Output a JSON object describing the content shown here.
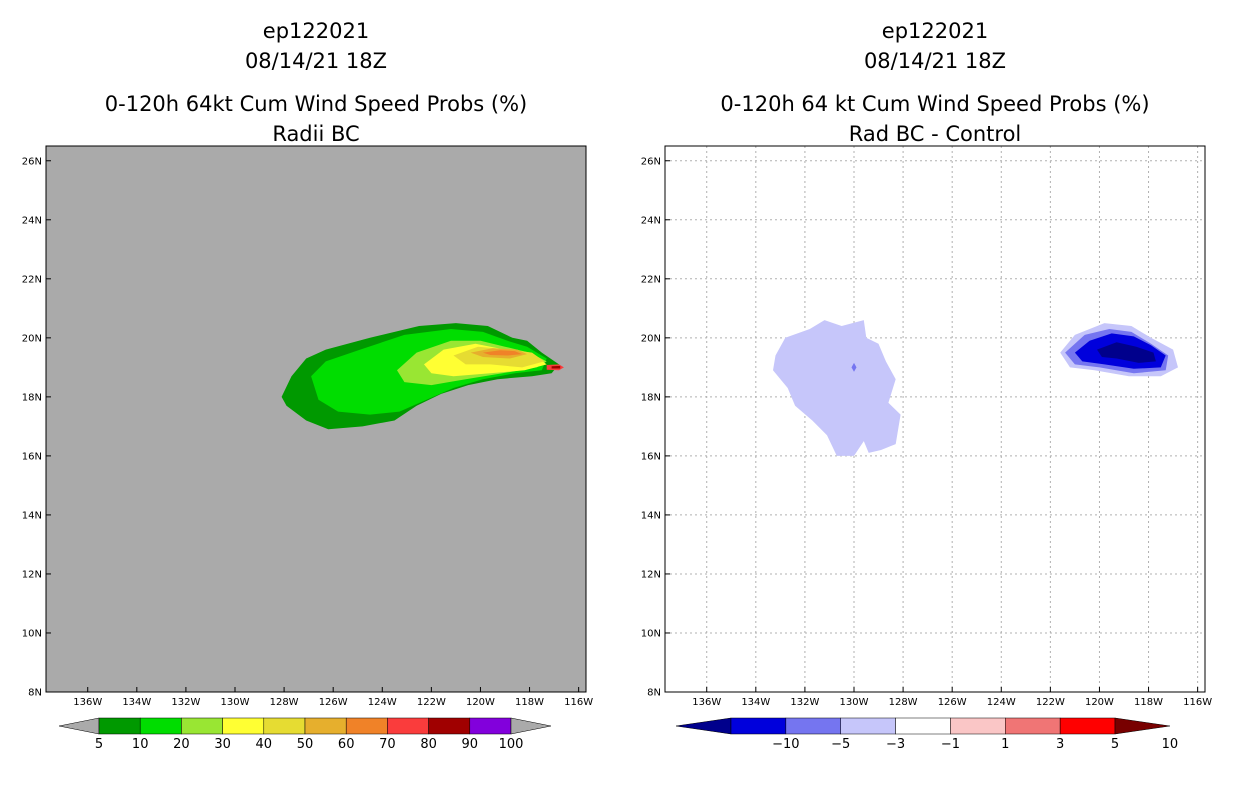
{
  "chart_data": [
    {
      "type": "heatmap",
      "title_lines": [
        "ep122021",
        "08/14/21 18Z",
        "0-120h 64kt Cum Wind Speed Probs (%)",
        "Radii BC"
      ],
      "x_ticks": [
        "136W",
        "134W",
        "132W",
        "130W",
        "128W",
        "126W",
        "124W",
        "122W",
        "120W",
        "118W",
        "116W"
      ],
      "y_ticks": [
        "8N",
        "10N",
        "12N",
        "14N",
        "16N",
        "18N",
        "20N",
        "22N",
        "24N",
        "26N"
      ],
      "x_range": [
        -137.7,
        -115.7
      ],
      "y_range": [
        8,
        26.5
      ],
      "grid": false,
      "background": "#aaaaaa",
      "colorbar": {
        "labels": [
          "5",
          "10",
          "20",
          "30",
          "40",
          "50",
          "60",
          "70",
          "80",
          "90",
          "100"
        ],
        "colors": [
          "#009900",
          "#00dd00",
          "#99e633",
          "#ffff33",
          "#e6dc32",
          "#e6af2d",
          "#f08228",
          "#fa3c3c",
          "#a00000",
          "#8200dc"
        ],
        "under_color": "#aaaaaa",
        "over_color": "#aaaaaa"
      },
      "contours": [
        {
          "level": "5-10",
          "color": "#009900",
          "points": [
            [
              -128.1,
              18.0
            ],
            [
              -127.7,
              18.7
            ],
            [
              -127.1,
              19.3
            ],
            [
              -126.3,
              19.6
            ],
            [
              -124.5,
              20.0
            ],
            [
              -122.5,
              20.4
            ],
            [
              -121.0,
              20.5
            ],
            [
              -119.7,
              20.4
            ],
            [
              -118.7,
              20.0
            ],
            [
              -118.1,
              19.9
            ],
            [
              -117.5,
              19.5
            ],
            [
              -116.8,
              19.1
            ],
            [
              -117.1,
              18.8
            ],
            [
              -117.9,
              18.7
            ],
            [
              -119.3,
              18.6
            ],
            [
              -120.5,
              18.4
            ],
            [
              -121.6,
              18.1
            ],
            [
              -122.6,
              17.7
            ],
            [
              -123.5,
              17.2
            ],
            [
              -124.8,
              17.0
            ],
            [
              -126.2,
              16.9
            ],
            [
              -127.1,
              17.2
            ],
            [
              -127.9,
              17.7
            ]
          ]
        },
        {
          "level": "10-20",
          "color": "#00dd00",
          "points": [
            [
              -126.9,
              18.7
            ],
            [
              -126.3,
              19.2
            ],
            [
              -124.9,
              19.6
            ],
            [
              -123.1,
              20.1
            ],
            [
              -121.2,
              20.3
            ],
            [
              -119.9,
              20.2
            ],
            [
              -118.9,
              19.9
            ],
            [
              -118.1,
              19.7
            ],
            [
              -117.3,
              19.3
            ],
            [
              -117.5,
              18.9
            ],
            [
              -118.6,
              18.8
            ],
            [
              -119.9,
              18.6
            ],
            [
              -121.1,
              18.3
            ],
            [
              -122.2,
              17.9
            ],
            [
              -123.3,
              17.5
            ],
            [
              -124.5,
              17.4
            ],
            [
              -125.8,
              17.5
            ],
            [
              -126.6,
              17.9
            ]
          ]
        },
        {
          "level": "20-30",
          "color": "#99e633",
          "points": [
            [
              -123.4,
              18.9
            ],
            [
              -122.6,
              19.5
            ],
            [
              -121.2,
              19.9
            ],
            [
              -120.0,
              19.9
            ],
            [
              -119.0,
              19.7
            ],
            [
              -118.0,
              19.5
            ],
            [
              -117.3,
              19.2
            ],
            [
              -117.7,
              19.0
            ],
            [
              -119.1,
              18.8
            ],
            [
              -120.6,
              18.6
            ],
            [
              -122.0,
              18.4
            ],
            [
              -123.1,
              18.5
            ]
          ]
        },
        {
          "level": "30-40",
          "color": "#ffff33",
          "points": [
            [
              -122.3,
              19.1
            ],
            [
              -121.5,
              19.6
            ],
            [
              -120.2,
              19.8
            ],
            [
              -119.0,
              19.6
            ],
            [
              -117.8,
              19.4
            ],
            [
              -117.3,
              19.1
            ],
            [
              -118.2,
              18.9
            ],
            [
              -119.6,
              18.8
            ],
            [
              -121.1,
              18.7
            ],
            [
              -122.0,
              18.8
            ]
          ]
        },
        {
          "level": "40-50",
          "color": "#e6dc32",
          "points": [
            [
              -121.1,
              19.4
            ],
            [
              -120.1,
              19.7
            ],
            [
              -118.8,
              19.6
            ],
            [
              -117.9,
              19.5
            ],
            [
              -117.4,
              19.2
            ],
            [
              -118.3,
              19.0
            ],
            [
              -119.6,
              19.1
            ],
            [
              -120.6,
              19.1
            ]
          ]
        },
        {
          "level": "50-60",
          "color": "#e6af2d",
          "points": [
            [
              -120.4,
              19.5
            ],
            [
              -119.5,
              19.65
            ],
            [
              -118.5,
              19.6
            ],
            [
              -118.1,
              19.45
            ],
            [
              -118.8,
              19.3
            ],
            [
              -119.9,
              19.35
            ]
          ]
        },
        {
          "level": "60-70",
          "color": "#f08228",
          "points": [
            [
              -119.9,
              19.5
            ],
            [
              -119.2,
              19.58
            ],
            [
              -118.6,
              19.55
            ],
            [
              -118.3,
              19.45
            ],
            [
              -118.9,
              19.4
            ],
            [
              -119.6,
              19.42
            ]
          ]
        },
        {
          "level": "70-80",
          "color": "#fa3c3c",
          "points": [
            [
              -117.3,
              19.08
            ],
            [
              -116.8,
              19.1
            ],
            [
              -116.6,
              19.0
            ],
            [
              -116.8,
              18.9
            ],
            [
              -117.3,
              18.92
            ]
          ]
        },
        {
          "level": "80-90",
          "color": "#a00000",
          "points": [
            [
              -117.1,
              19.04
            ],
            [
              -116.75,
              19.05
            ],
            [
              -116.75,
              18.96
            ],
            [
              -117.1,
              18.96
            ]
          ]
        }
      ]
    },
    {
      "type": "heatmap",
      "title_lines": [
        "ep122021",
        "08/14/21 18Z",
        "0-120h 64 kt Cum Wind Speed Probs (%)",
        "Rad BC - Control"
      ],
      "x_ticks": [
        "136W",
        "134W",
        "132W",
        "130W",
        "128W",
        "126W",
        "124W",
        "122W",
        "120W",
        "118W",
        "116W"
      ],
      "y_ticks": [
        "8N",
        "10N",
        "12N",
        "14N",
        "16N",
        "18N",
        "20N",
        "22N",
        "24N",
        "26N"
      ],
      "x_range": [
        -137.7,
        -115.7
      ],
      "y_range": [
        8,
        26.5
      ],
      "grid": true,
      "background": "#ffffff",
      "colorbar": {
        "labels": [
          "-10",
          "-5",
          "-3",
          "-1",
          "1",
          "3",
          "5",
          "10"
        ],
        "colors": [
          "#0000dc",
          "#7575f0",
          "#c6c6fa",
          "#ffffff",
          "#fac6c6",
          "#f07575",
          "#ff0000"
        ],
        "under_color": "#00008c",
        "over_color": "#780000"
      },
      "contours": [
        {
          "level": "-3--1",
          "color": "#c6c6fa",
          "points": [
            [
              -133.2,
              19.4
            ],
            [
              -132.8,
              20.0
            ],
            [
              -131.8,
              20.3
            ],
            [
              -131.2,
              20.6
            ],
            [
              -130.5,
              20.4
            ],
            [
              -129.6,
              20.6
            ],
            [
              -129.5,
              20.0
            ],
            [
              -129.0,
              19.8
            ],
            [
              -128.7,
              19.2
            ],
            [
              -128.3,
              18.6
            ],
            [
              -128.6,
              17.8
            ],
            [
              -128.1,
              17.4
            ],
            [
              -128.3,
              16.4
            ],
            [
              -128.9,
              16.2
            ],
            [
              -129.4,
              16.1
            ],
            [
              -129.6,
              16.5
            ],
            [
              -130.0,
              16.0
            ],
            [
              -130.7,
              16.0
            ],
            [
              -131.1,
              16.7
            ],
            [
              -131.7,
              17.2
            ],
            [
              -132.4,
              17.7
            ],
            [
              -132.7,
              18.3
            ],
            [
              -133.3,
              18.9
            ]
          ]
        },
        {
          "level": "-3--1",
          "color": "#c6c6fa",
          "points": [
            [
              -121.6,
              19.5
            ],
            [
              -121.0,
              20.1
            ],
            [
              -119.8,
              20.5
            ],
            [
              -118.7,
              20.4
            ],
            [
              -117.9,
              20.0
            ],
            [
              -117.0,
              19.6
            ],
            [
              -116.8,
              19.0
            ],
            [
              -117.5,
              18.7
            ],
            [
              -118.8,
              18.7
            ],
            [
              -120.2,
              18.9
            ],
            [
              -121.2,
              19.0
            ]
          ]
        },
        {
          "level": "-5--3",
          "color": "#7575f0",
          "points": [
            [
              -121.4,
              19.5
            ],
            [
              -120.6,
              20.1
            ],
            [
              -119.6,
              20.3
            ],
            [
              -118.7,
              20.2
            ],
            [
              -117.9,
              19.8
            ],
            [
              -117.2,
              19.4
            ],
            [
              -117.3,
              18.9
            ],
            [
              -118.6,
              18.8
            ],
            [
              -120.0,
              19.0
            ],
            [
              -121.0,
              19.1
            ]
          ]
        },
        {
          "level": "-10--5",
          "color": "#0000dc",
          "points": [
            [
              -121.0,
              19.5
            ],
            [
              -120.4,
              19.9
            ],
            [
              -119.5,
              20.15
            ],
            [
              -118.6,
              20.05
            ],
            [
              -117.9,
              19.75
            ],
            [
              -117.3,
              19.4
            ],
            [
              -117.5,
              19.0
            ],
            [
              -118.6,
              18.95
            ],
            [
              -119.8,
              19.1
            ],
            [
              -120.7,
              19.2
            ]
          ]
        },
        {
          "level": "<-10",
          "color": "#00008c",
          "points": [
            [
              -120.1,
              19.6
            ],
            [
              -119.3,
              19.85
            ],
            [
              -118.5,
              19.7
            ],
            [
              -117.8,
              19.5
            ],
            [
              -117.7,
              19.2
            ],
            [
              -118.4,
              19.15
            ],
            [
              -119.3,
              19.3
            ],
            [
              -119.9,
              19.35
            ]
          ]
        },
        {
          "level": "-5--3",
          "color": "#7575f0",
          "points": [
            [
              -130.0,
              19.15
            ],
            [
              -129.9,
              19.0
            ],
            [
              -130.0,
              18.85
            ],
            [
              -130.1,
              19.0
            ]
          ]
        }
      ]
    }
  ]
}
